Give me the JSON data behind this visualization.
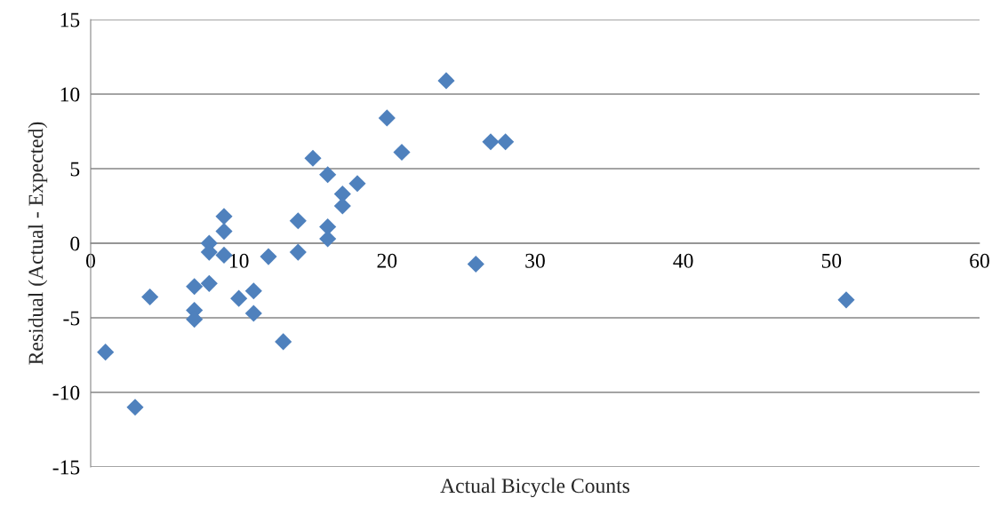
{
  "chart_data": {
    "type": "scatter",
    "xlabel": "Actual Bicycle Counts",
    "ylabel": "Residual (Actual - Expected)",
    "x": [
      1,
      3,
      4,
      7,
      7,
      7,
      8,
      8,
      8,
      9,
      9,
      9,
      10,
      11,
      11,
      12,
      13,
      14,
      14,
      15,
      16,
      16,
      16,
      17,
      17,
      18,
      20,
      21,
      24,
      26,
      27,
      28,
      51
    ],
    "series": [
      {
        "color": "#4f81bd",
        "values": [
          -7.3,
          -11,
          -3.6,
          -2.9,
          -4.5,
          -5.1,
          0,
          -0.6,
          -2.7,
          1.8,
          0.8,
          -0.8,
          -3.7,
          -3.2,
          -4.7,
          -0.9,
          -6.6,
          1.5,
          -0.6,
          5.7,
          4.6,
          1.1,
          0.3,
          3.3,
          2.5,
          4,
          8.4,
          6.1,
          10.9,
          -1.4,
          6.8,
          6.8,
          -3.8
        ]
      }
    ],
    "xlim": [
      0,
      60
    ],
    "xticks": [
      0,
      10,
      20,
      30,
      40,
      50,
      60
    ],
    "ylim": [
      -15,
      15
    ],
    "yticks": [
      {
        "value": -15,
        "label": "-15"
      },
      {
        "value": -10,
        "label": "-10"
      },
      {
        "value": -5,
        "label": "-5"
      },
      0,
      5,
      10,
      15
    ],
    "grid": "y",
    "marker": "diamond",
    "legend": false
  }
}
